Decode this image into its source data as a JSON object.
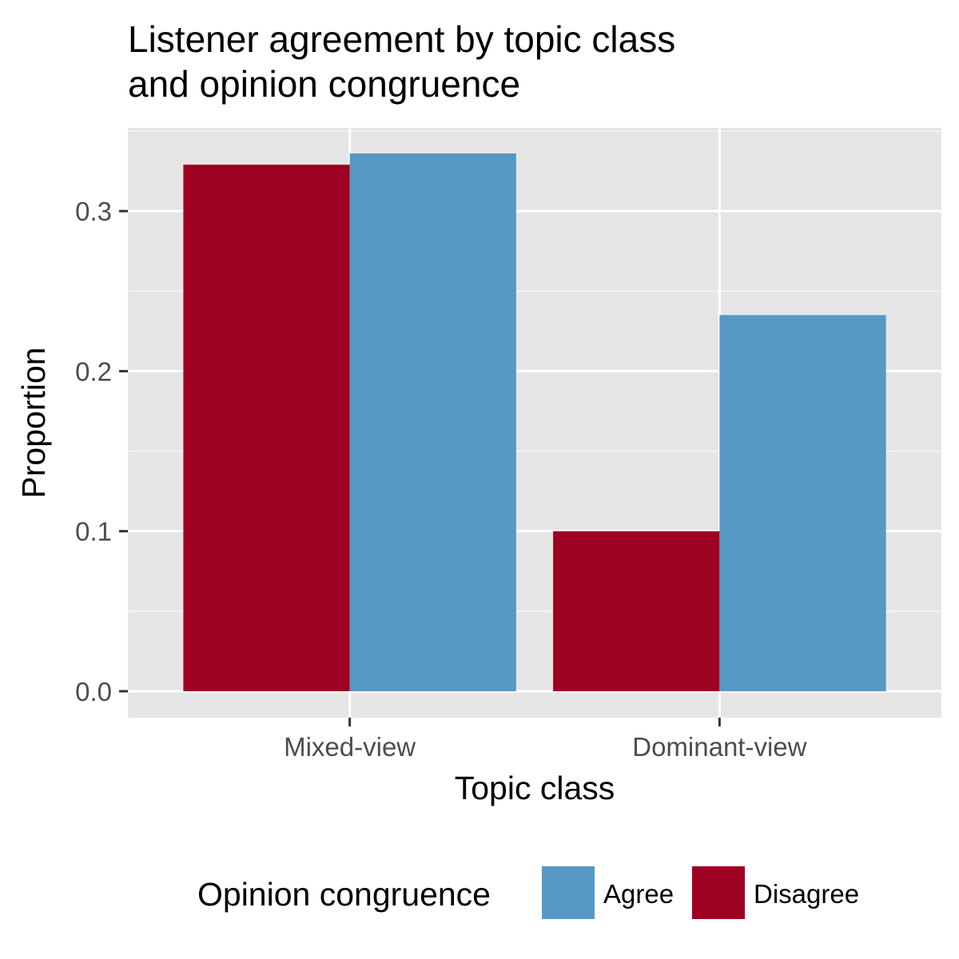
{
  "chart_data": {
    "type": "bar",
    "title": [
      "Listener agreement by topic class",
      "and opinion congruence"
    ],
    "xlabel": "Topic class",
    "ylabel": "Proportion",
    "categories": [
      "Mixed-view",
      "Dominant-view"
    ],
    "series": [
      {
        "name": "Disagree",
        "color": "#9E0022",
        "values": [
          0.329,
          0.1
        ]
      },
      {
        "name": "Agree",
        "color": "#5599C4",
        "values": [
          0.336,
          0.235
        ]
      }
    ],
    "ylim": [
      -0.0165,
      0.352
    ],
    "yticks": [
      0.0,
      0.1,
      0.2,
      0.3
    ],
    "ytick_labels": [
      "0.0",
      "0.1",
      "0.2",
      "0.3"
    ],
    "grid": true,
    "panel_background": "#E5E5E5",
    "legend": {
      "title": "Opinion congruence",
      "position": "bottom",
      "entries": [
        {
          "label": "Agree",
          "color": "#5599C4"
        },
        {
          "label": "Disagree",
          "color": "#9E0022"
        }
      ]
    }
  }
}
